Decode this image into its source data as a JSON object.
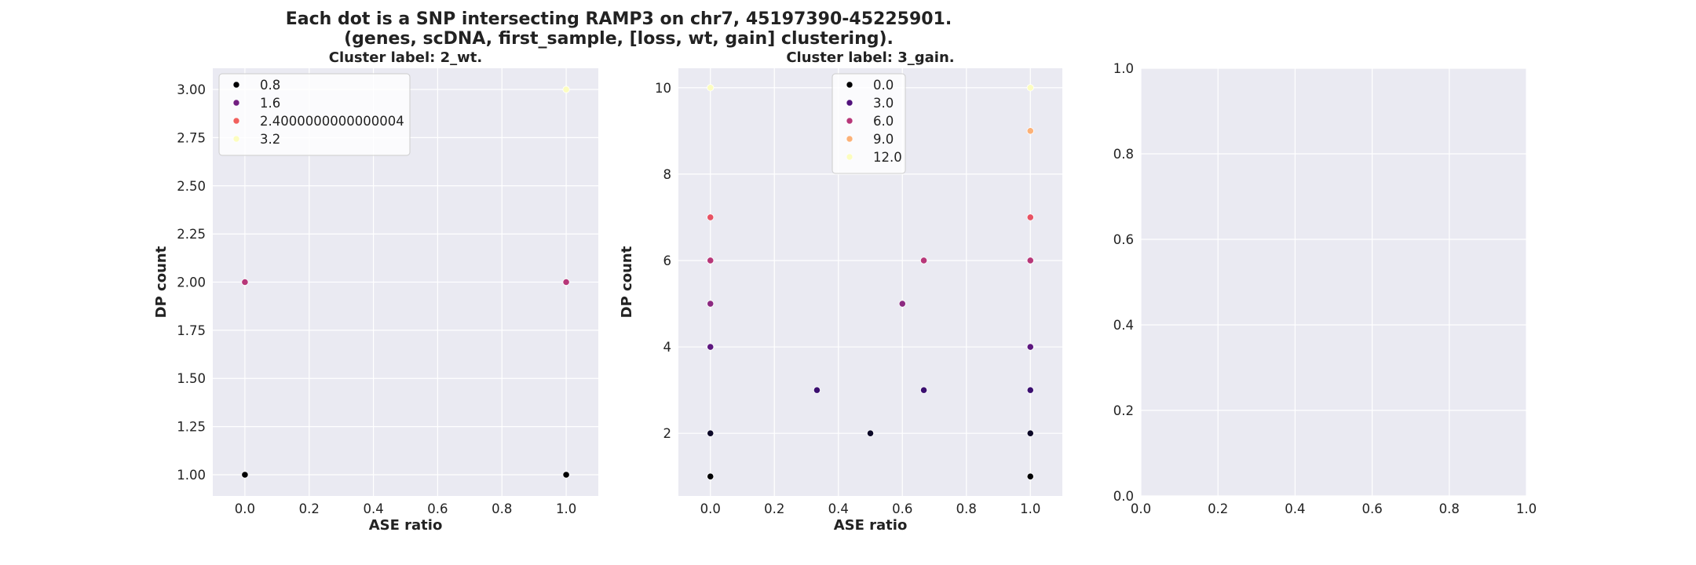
{
  "figure": {
    "title_line1": "Each dot is a SNP intersecting RAMP3 on chr7, 45197390-45225901.",
    "title_line2": "(genes, scDNA, first_sample, [loss, wt, gain] clustering)."
  },
  "colors": {
    "axes_bg": "#eaeaf2",
    "grid": "#ffffff",
    "text": "#222222"
  },
  "chart_data": [
    {
      "type": "scatter",
      "title": "Cluster label: 2_wt.",
      "xlabel": "ASE ratio",
      "ylabel": "DP count",
      "xlim": [
        -0.1,
        1.1
      ],
      "ylim": [
        0.89,
        3.11
      ],
      "xticks": [
        "0.0",
        "0.2",
        "0.4",
        "0.6",
        "0.8",
        "1.0"
      ],
      "yticks": [
        "1.00",
        "1.25",
        "1.50",
        "1.75",
        "2.00",
        "2.25",
        "2.50",
        "2.75",
        "3.00"
      ],
      "grid": true,
      "legend": {
        "placement": "upper-left",
        "entries": [
          {
            "label": "0.8",
            "color": "#000004"
          },
          {
            "label": "1.6",
            "color": "#721f81"
          },
          {
            "label": "2.4000000000000004",
            "color": "#f1605d"
          },
          {
            "label": "3.2",
            "color": "#fcfdbf"
          }
        ]
      },
      "points": [
        {
          "x": 0.0,
          "y": 1,
          "color": "#000004"
        },
        {
          "x": 1.0,
          "y": 1,
          "color": "#000004"
        },
        {
          "x": 0.0,
          "y": 2,
          "color": "#b73779"
        },
        {
          "x": 1.0,
          "y": 2,
          "color": "#b73779"
        },
        {
          "x": 1.0,
          "y": 3,
          "color": "#fcfdbf"
        }
      ]
    },
    {
      "type": "scatter",
      "title": "Cluster label: 3_gain.",
      "xlabel": "ASE ratio",
      "ylabel": "DP count",
      "xlim": [
        -0.1,
        1.1
      ],
      "ylim": [
        0.55,
        10.45
      ],
      "xticks": [
        "0.0",
        "0.2",
        "0.4",
        "0.6",
        "0.8",
        "1.0"
      ],
      "yticks": [
        "2",
        "4",
        "6",
        "8",
        "10"
      ],
      "grid": true,
      "legend": {
        "placement": "upper-center",
        "entries": [
          {
            "label": "0.0",
            "color": "#000004"
          },
          {
            "label": "3.0",
            "color": "#51127c"
          },
          {
            "label": "6.0",
            "color": "#b73779"
          },
          {
            "label": "9.0",
            "color": "#fcb177"
          },
          {
            "label": "12.0",
            "color": "#fcfdbf"
          }
        ]
      },
      "points": [
        {
          "x": 0.0,
          "y": 1,
          "color": "#000004"
        },
        {
          "x": 0.0,
          "y": 2,
          "color": "#0d0a29"
        },
        {
          "x": 0.0,
          "y": 4,
          "color": "#5d177f"
        },
        {
          "x": 0.0,
          "y": 5,
          "color": "#8c2981"
        },
        {
          "x": 0.0,
          "y": 6,
          "color": "#b73779"
        },
        {
          "x": 0.0,
          "y": 7,
          "color": "#e75263"
        },
        {
          "x": 0.0,
          "y": 10,
          "color": "#fcfdbf"
        },
        {
          "x": 0.333,
          "y": 3,
          "color": "#3b0f70"
        },
        {
          "x": 0.5,
          "y": 2,
          "color": "#0d0a29"
        },
        {
          "x": 0.6,
          "y": 5,
          "color": "#8c2981"
        },
        {
          "x": 0.667,
          "y": 3,
          "color": "#3b0f70"
        },
        {
          "x": 0.667,
          "y": 6,
          "color": "#b73779"
        },
        {
          "x": 1.0,
          "y": 1,
          "color": "#000004"
        },
        {
          "x": 1.0,
          "y": 2,
          "color": "#0d0a29"
        },
        {
          "x": 1.0,
          "y": 3,
          "color": "#3b0f70"
        },
        {
          "x": 1.0,
          "y": 4,
          "color": "#5d177f"
        },
        {
          "x": 1.0,
          "y": 6,
          "color": "#b73779"
        },
        {
          "x": 1.0,
          "y": 7,
          "color": "#e75263"
        },
        {
          "x": 1.0,
          "y": 9,
          "color": "#fcb177"
        },
        {
          "x": 1.0,
          "y": 10,
          "color": "#fcfdbf"
        }
      ]
    },
    {
      "type": "scatter",
      "title": "",
      "xlabel": "",
      "ylabel": "",
      "xlim": [
        0,
        1
      ],
      "ylim": [
        0,
        1
      ],
      "xticks": [
        "0.0",
        "0.2",
        "0.4",
        "0.6",
        "0.8",
        "1.0"
      ],
      "yticks": [
        "0.0",
        "0.2",
        "0.4",
        "0.6",
        "0.8",
        "1.0"
      ],
      "grid": true,
      "points": []
    }
  ]
}
